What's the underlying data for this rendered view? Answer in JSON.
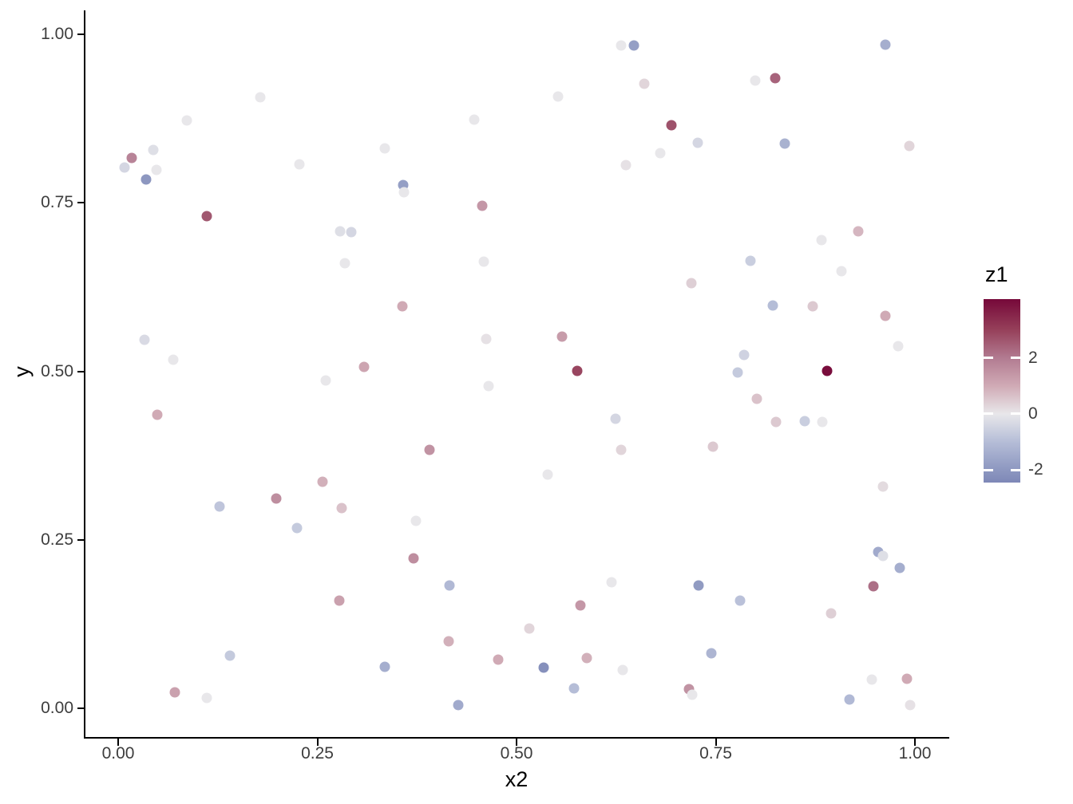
{
  "figure": {
    "background": "#ffffff",
    "axis_color": "#000000",
    "tick_text_color": "#3d3d3d"
  },
  "chart_data": {
    "type": "scatter",
    "title": "",
    "xlabel": "x2",
    "ylabel": "y",
    "xlim": [
      0,
      1
    ],
    "ylim": [
      0,
      1
    ],
    "grid": "off",
    "x_ticks": [
      {
        "value": 0.0,
        "label": "0.00"
      },
      {
        "value": 0.25,
        "label": "0.25"
      },
      {
        "value": 0.5,
        "label": "0.50"
      },
      {
        "value": 0.75,
        "label": "0.75"
      },
      {
        "value": 1.0,
        "label": "1.00"
      }
    ],
    "y_ticks": [
      {
        "value": 0.0,
        "label": "0.00"
      },
      {
        "value": 0.25,
        "label": "0.25"
      },
      {
        "value": 0.5,
        "label": "0.50"
      },
      {
        "value": 0.75,
        "label": "0.75"
      },
      {
        "value": 1.0,
        "label": "1.00"
      }
    ],
    "legend": {
      "title": "z1",
      "position": "right",
      "orientation": "vertical",
      "vmin": -2.45,
      "vmax": 4.1,
      "ticks": [
        {
          "value": 2,
          "label": "2"
        },
        {
          "value": 0,
          "label": "0"
        },
        {
          "value": -2,
          "label": "-2"
        }
      ]
    },
    "color_scale_stops": [
      {
        "v": -2.45,
        "color": "#7e88b7"
      },
      {
        "v": -2.0,
        "color": "#8d97c0"
      },
      {
        "v": -1.0,
        "color": "#b5bdd7"
      },
      {
        "v": 0.0,
        "color": "#e8e7ea"
      },
      {
        "v": 1.0,
        "color": "#d0aab5"
      },
      {
        "v": 2.0,
        "color": "#b27b91"
      },
      {
        "v": 3.0,
        "color": "#96405a"
      },
      {
        "v": 4.1,
        "color": "#760839"
      }
    ],
    "points": [
      {
        "x": 0.178,
        "y": 0.906,
        "z": 0.0
      },
      {
        "x": 0.086,
        "y": 0.872,
        "z": 0.0
      },
      {
        "x": 0.044,
        "y": 0.828,
        "z": -0.2
      },
      {
        "x": 0.017,
        "y": 0.817,
        "z": 1.8
      },
      {
        "x": 0.008,
        "y": 0.802,
        "z": -0.4
      },
      {
        "x": 0.048,
        "y": 0.799,
        "z": 0.0
      },
      {
        "x": 0.035,
        "y": 0.785,
        "z": -2.0
      },
      {
        "x": 0.111,
        "y": 0.73,
        "z": 2.6
      },
      {
        "x": 0.227,
        "y": 0.807,
        "z": 0.0
      },
      {
        "x": 0.279,
        "y": 0.708,
        "z": -0.2
      },
      {
        "x": 0.293,
        "y": 0.706,
        "z": -0.4
      },
      {
        "x": 0.631,
        "y": 0.983,
        "z": 0.0
      },
      {
        "x": 0.647,
        "y": 0.983,
        "z": -1.8
      },
      {
        "x": 0.66,
        "y": 0.927,
        "z": 0.3
      },
      {
        "x": 0.552,
        "y": 0.908,
        "z": 0.0
      },
      {
        "x": 0.447,
        "y": 0.873,
        "z": 0.0
      },
      {
        "x": 0.335,
        "y": 0.831,
        "z": 0.0
      },
      {
        "x": 0.637,
        "y": 0.806,
        "z": 0.1
      },
      {
        "x": 0.358,
        "y": 0.776,
        "z": -1.8
      },
      {
        "x": 0.359,
        "y": 0.766,
        "z": 0.0
      },
      {
        "x": 0.457,
        "y": 0.745,
        "z": 1.4
      },
      {
        "x": 0.963,
        "y": 0.985,
        "z": -1.4
      },
      {
        "x": 0.8,
        "y": 0.931,
        "z": 0.0
      },
      {
        "x": 0.825,
        "y": 0.935,
        "z": 2.4
      },
      {
        "x": 0.694,
        "y": 0.865,
        "z": 2.7
      },
      {
        "x": 0.727,
        "y": 0.839,
        "z": -0.4
      },
      {
        "x": 0.68,
        "y": 0.824,
        "z": 0.0
      },
      {
        "x": 0.837,
        "y": 0.838,
        "z": -1.3
      },
      {
        "x": 0.993,
        "y": 0.834,
        "z": 0.3
      },
      {
        "x": 0.929,
        "y": 0.708,
        "z": 0.8
      },
      {
        "x": 0.883,
        "y": 0.695,
        "z": 0.0
      },
      {
        "x": 0.285,
        "y": 0.66,
        "z": 0.0
      },
      {
        "x": 0.033,
        "y": 0.547,
        "z": -0.3
      },
      {
        "x": 0.069,
        "y": 0.517,
        "z": 0.0
      },
      {
        "x": 0.309,
        "y": 0.506,
        "z": 1.1
      },
      {
        "x": 0.261,
        "y": 0.486,
        "z": 0.0
      },
      {
        "x": 0.049,
        "y": 0.436,
        "z": 1.0
      },
      {
        "x": 0.257,
        "y": 0.336,
        "z": 0.9
      },
      {
        "x": 0.198,
        "y": 0.311,
        "z": 1.6
      },
      {
        "x": 0.459,
        "y": 0.663,
        "z": 0.0
      },
      {
        "x": 0.357,
        "y": 0.597,
        "z": 1.0
      },
      {
        "x": 0.462,
        "y": 0.548,
        "z": 0.1
      },
      {
        "x": 0.557,
        "y": 0.551,
        "z": 1.3
      },
      {
        "x": 0.576,
        "y": 0.501,
        "z": 2.9
      },
      {
        "x": 0.465,
        "y": 0.478,
        "z": 0.0
      },
      {
        "x": 0.624,
        "y": 0.429,
        "z": -0.4
      },
      {
        "x": 0.391,
        "y": 0.384,
        "z": 1.5
      },
      {
        "x": 0.631,
        "y": 0.383,
        "z": 0.3
      },
      {
        "x": 0.539,
        "y": 0.347,
        "z": 0.0
      },
      {
        "x": 0.794,
        "y": 0.664,
        "z": -0.6
      },
      {
        "x": 0.908,
        "y": 0.649,
        "z": 0.0
      },
      {
        "x": 0.719,
        "y": 0.631,
        "z": 0.4
      },
      {
        "x": 0.822,
        "y": 0.598,
        "z": -1.0
      },
      {
        "x": 0.872,
        "y": 0.597,
        "z": 0.5
      },
      {
        "x": 0.963,
        "y": 0.582,
        "z": 1.0
      },
      {
        "x": 0.979,
        "y": 0.537,
        "z": 0.0
      },
      {
        "x": 0.786,
        "y": 0.524,
        "z": -0.5
      },
      {
        "x": 0.89,
        "y": 0.501,
        "z": 4.0
      },
      {
        "x": 0.778,
        "y": 0.498,
        "z": -0.7
      },
      {
        "x": 0.802,
        "y": 0.459,
        "z": 0.6
      },
      {
        "x": 0.826,
        "y": 0.425,
        "z": 0.5
      },
      {
        "x": 0.862,
        "y": 0.426,
        "z": -0.6
      },
      {
        "x": 0.884,
        "y": 0.425,
        "z": 0.0
      },
      {
        "x": 0.746,
        "y": 0.388,
        "z": 0.5
      },
      {
        "x": 0.96,
        "y": 0.329,
        "z": 0.2
      },
      {
        "x": 0.127,
        "y": 0.3,
        "z": -0.8
      },
      {
        "x": 0.281,
        "y": 0.297,
        "z": 0.6
      },
      {
        "x": 0.224,
        "y": 0.267,
        "z": -0.7
      },
      {
        "x": 0.278,
        "y": 0.16,
        "z": 1.2
      },
      {
        "x": 0.14,
        "y": 0.078,
        "z": -0.7
      },
      {
        "x": 0.071,
        "y": 0.024,
        "z": 1.2
      },
      {
        "x": 0.111,
        "y": 0.015,
        "z": 0.0
      },
      {
        "x": 0.374,
        "y": 0.278,
        "z": 0.0
      },
      {
        "x": 0.371,
        "y": 0.222,
        "z": 1.6
      },
      {
        "x": 0.416,
        "y": 0.182,
        "z": -1.1
      },
      {
        "x": 0.619,
        "y": 0.187,
        "z": 0.0
      },
      {
        "x": 0.58,
        "y": 0.153,
        "z": 1.4
      },
      {
        "x": 0.516,
        "y": 0.118,
        "z": 0.3
      },
      {
        "x": 0.415,
        "y": 0.099,
        "z": 0.9
      },
      {
        "x": 0.477,
        "y": 0.072,
        "z": 1.0
      },
      {
        "x": 0.534,
        "y": 0.06,
        "z": -2.2
      },
      {
        "x": 0.588,
        "y": 0.075,
        "z": 0.9
      },
      {
        "x": 0.335,
        "y": 0.062,
        "z": -1.4
      },
      {
        "x": 0.572,
        "y": 0.03,
        "z": -1.0
      },
      {
        "x": 0.633,
        "y": 0.057,
        "z": 0.0
      },
      {
        "x": 0.427,
        "y": 0.005,
        "z": -1.5
      },
      {
        "x": 0.954,
        "y": 0.232,
        "z": -1.5
      },
      {
        "x": 0.96,
        "y": 0.226,
        "z": -0.2
      },
      {
        "x": 0.981,
        "y": 0.208,
        "z": -1.4
      },
      {
        "x": 0.728,
        "y": 0.182,
        "z": -1.9
      },
      {
        "x": 0.948,
        "y": 0.181,
        "z": 2.2
      },
      {
        "x": 0.781,
        "y": 0.16,
        "z": -0.9
      },
      {
        "x": 0.895,
        "y": 0.141,
        "z": 0.4
      },
      {
        "x": 0.744,
        "y": 0.082,
        "z": -1.2
      },
      {
        "x": 0.716,
        "y": 0.028,
        "z": 1.5
      },
      {
        "x": 0.72,
        "y": 0.02,
        "z": 0.0
      },
      {
        "x": 0.946,
        "y": 0.043,
        "z": 0.0
      },
      {
        "x": 0.918,
        "y": 0.013,
        "z": -1.1
      },
      {
        "x": 0.99,
        "y": 0.044,
        "z": 1.0
      },
      {
        "x": 0.994,
        "y": 0.005,
        "z": 0.1
      }
    ]
  }
}
